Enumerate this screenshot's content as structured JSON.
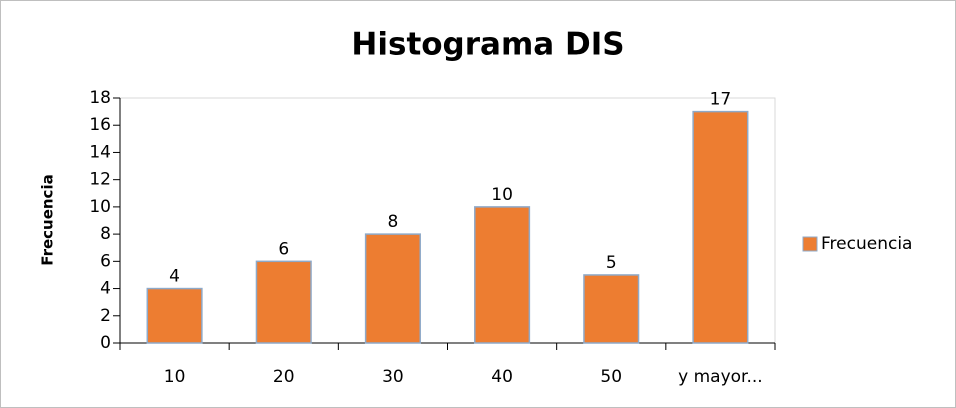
{
  "chart_data": {
    "type": "bar",
    "title": "Histograma DIS",
    "y_label": "Frecuencia",
    "categories": [
      "10",
      "20",
      "30",
      "40",
      "50",
      "y mayor..."
    ],
    "series": [
      {
        "name": "Frecuencia",
        "color": "#ed7d31",
        "values": [
          4,
          6,
          8,
          10,
          5,
          17
        ]
      }
    ],
    "ylim": [
      0,
      18
    ],
    "yticks": [
      0,
      2,
      4,
      6,
      8,
      10,
      12,
      14,
      16,
      18
    ],
    "grid": false,
    "legend": "right"
  }
}
